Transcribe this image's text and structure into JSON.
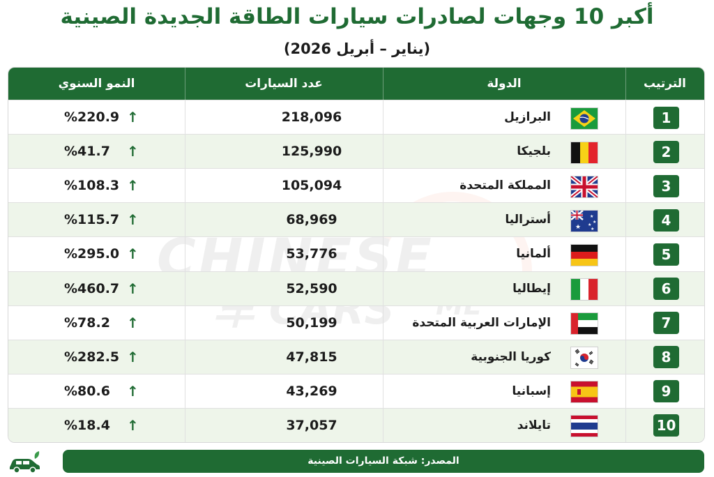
{
  "title": "أكبر 10 وجهات لصادرات سيارات الطاقة الجديدة الصينية",
  "subtitle": "(يناير – أبريل 2026)",
  "watermark": {
    "line1": "CHINESE",
    "line2": "CARS",
    "suffix": "ME",
    "glyph": "车"
  },
  "headers": {
    "rank": "الترتيب",
    "country": "الدولة",
    "count": "عدد السيارات",
    "growth": "النمو السنوي"
  },
  "growth_arrow": "↑",
  "rows": [
    {
      "rank": "1",
      "country": "البرازيل",
      "flag": "brazil-flag-icon",
      "count": "218,096",
      "growth": "%220.9"
    },
    {
      "rank": "2",
      "country": "بلجيكا",
      "flag": "belgium-flag-icon",
      "count": "125,990",
      "growth": "%41.7"
    },
    {
      "rank": "3",
      "country": "المملكة المتحدة",
      "flag": "uk-flag-icon",
      "count": "105,094",
      "growth": "%108.3"
    },
    {
      "rank": "4",
      "country": "أستراليا",
      "flag": "australia-flag-icon",
      "count": "68,969",
      "growth": "%115.7"
    },
    {
      "rank": "5",
      "country": "ألمانيا",
      "flag": "germany-flag-icon",
      "count": "53,776",
      "growth": "%295.0"
    },
    {
      "rank": "6",
      "country": "إيطاليا",
      "flag": "italy-flag-icon",
      "count": "52,590",
      "growth": "%460.7"
    },
    {
      "rank": "7",
      "country": "الإمارات العربية المتحدة",
      "flag": "uae-flag-icon",
      "count": "50,199",
      "growth": "%78.2"
    },
    {
      "rank": "8",
      "country": "كوريا الجنوبية",
      "flag": "south-korea-flag-icon",
      "count": "47,815",
      "growth": "%282.5"
    },
    {
      "rank": "9",
      "country": "إسبانيا",
      "flag": "spain-flag-icon",
      "count": "43,269",
      "growth": "%80.6"
    },
    {
      "rank": "10",
      "country": "تايلاند",
      "flag": "thailand-flag-icon",
      "count": "37,057",
      "growth": "%18.4"
    }
  ],
  "footer": "المصدر: شبكة السيارات الصينية",
  "colors": {
    "accent": "#1f6b33",
    "alt_row": "#eef5ea"
  }
}
